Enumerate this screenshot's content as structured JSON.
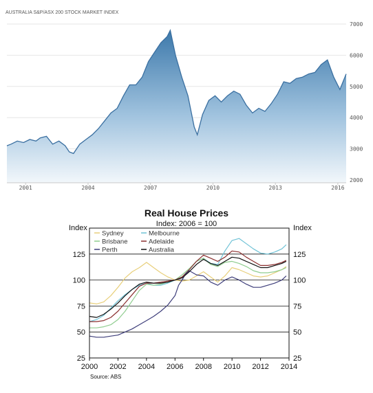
{
  "chart_data": [
    {
      "type": "area",
      "title": "AUSTRALIA S&P/ASX 200 STOCK MARKET INDEX",
      "x_tick_labels": [
        "2001",
        "2004",
        "2007",
        "2010",
        "2013",
        "2016"
      ],
      "x_ticks": [
        2001,
        2004,
        2007,
        2010,
        2013,
        2016
      ],
      "y_tick_labels": [
        "2000",
        "3000",
        "4000",
        "5000",
        "6000",
        "7000"
      ],
      "y_ticks": [
        2000,
        3000,
        4000,
        5000,
        6000,
        7000
      ],
      "xlim": [
        2000.1,
        2016.4
      ],
      "ylim": [
        2000,
        7000
      ],
      "colors": {
        "line": "#3a6fa0",
        "fill_top": "#3d79ab",
        "fill_bottom": "#ffffff",
        "grid": "#e6e6e6"
      },
      "series": [
        {
          "x": [
            2000.1,
            2000.3,
            2000.6,
            2000.9,
            2001.2,
            2001.5,
            2001.7,
            2002.0,
            2002.3,
            2002.6,
            2002.9,
            2003.1,
            2003.3,
            2003.6,
            2003.9,
            2004.2,
            2004.5,
            2004.8,
            2005.1,
            2005.4,
            2005.7,
            2006.0,
            2006.3,
            2006.6,
            2006.9,
            2007.2,
            2007.5,
            2007.8,
            2007.95,
            2008.2,
            2008.5,
            2008.8,
            2009.1,
            2009.25,
            2009.5,
            2009.8,
            2010.1,
            2010.4,
            2010.7,
            2011.0,
            2011.3,
            2011.6,
            2011.9,
            2012.2,
            2012.5,
            2012.8,
            2013.1,
            2013.4,
            2013.7,
            2014.0,
            2014.3,
            2014.6,
            2014.9,
            2015.2,
            2015.5,
            2015.8,
            2016.1,
            2016.4
          ],
          "values": [
            3100,
            3150,
            3250,
            3200,
            3300,
            3250,
            3350,
            3400,
            3150,
            3250,
            3100,
            2900,
            2850,
            3150,
            3300,
            3450,
            3650,
            3900,
            4150,
            4300,
            4700,
            5050,
            5050,
            5300,
            5800,
            6100,
            6400,
            6600,
            6800,
            6000,
            5300,
            4700,
            3700,
            3450,
            4100,
            4550,
            4700,
            4500,
            4700,
            4850,
            4750,
            4400,
            4150,
            4300,
            4200,
            4450,
            4750,
            5150,
            5100,
            5250,
            5300,
            5400,
            5450,
            5700,
            5850,
            5300,
            4900,
            5400
          ]
        }
      ]
    },
    {
      "type": "line",
      "title": "Real House Prices",
      "subtitle": "Index: 2006 = 100",
      "ylabel_left": "Index",
      "ylabel_right": "Index",
      "source": "Source: ABS",
      "x_tick_labels": [
        "2000",
        "2002",
        "2004",
        "2006",
        "2008",
        "2010",
        "2012",
        "2014"
      ],
      "x_ticks": [
        2000,
        2002,
        2004,
        2006,
        2008,
        2010,
        2012,
        2014
      ],
      "y_tick_labels": [
        "25",
        "50",
        "75",
        "100",
        "125"
      ],
      "y_ticks": [
        25,
        50,
        75,
        100,
        125
      ],
      "xlim": [
        2000,
        2014
      ],
      "ylim": [
        25,
        150
      ],
      "legend_position": "top-left",
      "series": [
        {
          "name": "Sydney",
          "color": "#e8cf7a",
          "x": [
            2000.0,
            2000.5,
            2001.0,
            2001.5,
            2002.0,
            2002.5,
            2003.0,
            2003.5,
            2004.0,
            2004.5,
            2005.0,
            2005.5,
            2006.0,
            2006.5,
            2007.0,
            2007.5,
            2008.0,
            2008.5,
            2009.0,
            2009.5,
            2010.0,
            2010.5,
            2011.0,
            2011.5,
            2012.0,
            2012.5,
            2013.0,
            2013.5,
            2013.8
          ],
          "values": [
            78,
            77,
            79,
            85,
            93,
            102,
            108,
            112,
            117,
            112,
            107,
            103,
            100,
            99,
            100,
            104,
            108,
            103,
            98,
            104,
            112,
            110,
            107,
            104,
            103,
            104,
            107,
            110,
            113
          ]
        },
        {
          "name": "Melbourne",
          "color": "#6fc2d6",
          "x": [
            2000.0,
            2000.5,
            2001.0,
            2001.5,
            2002.0,
            2002.5,
            2003.0,
            2003.5,
            2004.0,
            2004.5,
            2005.0,
            2005.5,
            2006.0,
            2006.5,
            2007.0,
            2007.5,
            2008.0,
            2008.5,
            2009.0,
            2009.5,
            2010.0,
            2010.5,
            2011.0,
            2011.5,
            2012.0,
            2012.5,
            2013.0,
            2013.5,
            2013.8
          ],
          "values": [
            60,
            62,
            66,
            73,
            80,
            86,
            91,
            95,
            97,
            95,
            95,
            97,
            100,
            103,
            110,
            118,
            121,
            116,
            115,
            128,
            138,
            140,
            135,
            130,
            126,
            125,
            127,
            130,
            134
          ]
        },
        {
          "name": "Brisbane",
          "color": "#8fcd8f",
          "x": [
            2000.0,
            2000.5,
            2001.0,
            2001.5,
            2002.0,
            2002.5,
            2003.0,
            2003.5,
            2004.0,
            2004.5,
            2005.0,
            2005.5,
            2006.0,
            2006.5,
            2007.0,
            2007.5,
            2008.0,
            2008.5,
            2009.0,
            2009.5,
            2010.0,
            2010.5,
            2011.0,
            2011.5,
            2012.0,
            2012.5,
            2013.0,
            2013.5,
            2013.8
          ],
          "values": [
            54,
            54,
            55,
            57,
            62,
            70,
            80,
            90,
            96,
            95,
            96,
            98,
            100,
            105,
            111,
            118,
            121,
            115,
            113,
            117,
            118,
            116,
            113,
            109,
            107,
            107,
            108,
            110,
            112
          ]
        },
        {
          "name": "Adelaide",
          "color": "#8b2f2f",
          "x": [
            2000.0,
            2000.5,
            2001.0,
            2001.5,
            2002.0,
            2002.5,
            2003.0,
            2003.5,
            2004.0,
            2004.5,
            2005.0,
            2005.5,
            2006.0,
            2006.5,
            2007.0,
            2007.5,
            2008.0,
            2008.5,
            2009.0,
            2009.5,
            2010.0,
            2010.5,
            2011.0,
            2011.5,
            2012.0,
            2012.5,
            2013.0,
            2013.5,
            2013.8
          ],
          "values": [
            60,
            60,
            61,
            64,
            70,
            78,
            86,
            94,
            97,
            97,
            98,
            99,
            100,
            103,
            110,
            118,
            124,
            121,
            118,
            122,
            128,
            127,
            122,
            118,
            114,
            114,
            115,
            117,
            119
          ]
        },
        {
          "name": "Perth",
          "color": "#3d3d7a",
          "x": [
            2000.0,
            2000.5,
            2001.0,
            2001.5,
            2002.0,
            2002.5,
            2003.0,
            2003.5,
            2004.0,
            2004.5,
            2005.0,
            2005.5,
            2006.0,
            2006.25,
            2006.5,
            2006.75,
            2007.0,
            2007.5,
            2008.0,
            2008.5,
            2009.0,
            2009.5,
            2010.0,
            2010.5,
            2011.0,
            2011.5,
            2012.0,
            2012.5,
            2013.0,
            2013.5,
            2013.8
          ],
          "values": [
            46,
            45,
            45,
            46,
            47,
            50,
            53,
            57,
            61,
            65,
            70,
            76,
            85,
            95,
            100,
            106,
            109,
            105,
            104,
            98,
            95,
            100,
            103,
            100,
            96,
            93,
            93,
            95,
            97,
            100,
            104
          ]
        },
        {
          "name": "Australia",
          "color": "#111111",
          "x": [
            2000.0,
            2000.5,
            2001.0,
            2001.5,
            2002.0,
            2002.5,
            2003.0,
            2003.5,
            2004.0,
            2004.5,
            2005.0,
            2005.5,
            2006.0,
            2006.5,
            2007.0,
            2007.5,
            2008.0,
            2008.5,
            2009.0,
            2009.5,
            2010.0,
            2010.5,
            2011.0,
            2011.5,
            2012.0,
            2012.5,
            2013.0,
            2013.5,
            2013.8
          ],
          "values": [
            65,
            64,
            67,
            72,
            78,
            85,
            91,
            96,
            98,
            97,
            97,
            98,
            100,
            102,
            108,
            115,
            120,
            116,
            114,
            118,
            122,
            121,
            118,
            115,
            112,
            112,
            114,
            116,
            118
          ]
        }
      ]
    }
  ]
}
